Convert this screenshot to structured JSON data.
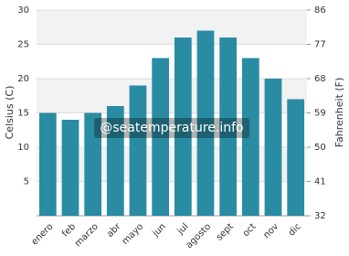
{
  "chart_data": {
    "type": "bar",
    "categories": [
      "enero",
      "feb",
      "marzo",
      "abr",
      "mayo",
      "jun",
      "jul",
      "agosto",
      "sept",
      "oct",
      "nov",
      "dic"
    ],
    "values": [
      15,
      14,
      15,
      16,
      19,
      23,
      26,
      27,
      26,
      23,
      20,
      17
    ],
    "color": "#2a8ca2",
    "ylabel": "Celsius (C)",
    "y2label": "Fahrenheit (F)",
    "ylim": [
      0,
      30
    ],
    "yticks": [
      5,
      10,
      15,
      20,
      25,
      30
    ],
    "y2lim": [
      32,
      86
    ],
    "y2ticks": [
      32,
      41,
      50,
      59,
      68,
      77,
      86
    ],
    "watermark": "@seatemperature.info",
    "grid": true
  }
}
